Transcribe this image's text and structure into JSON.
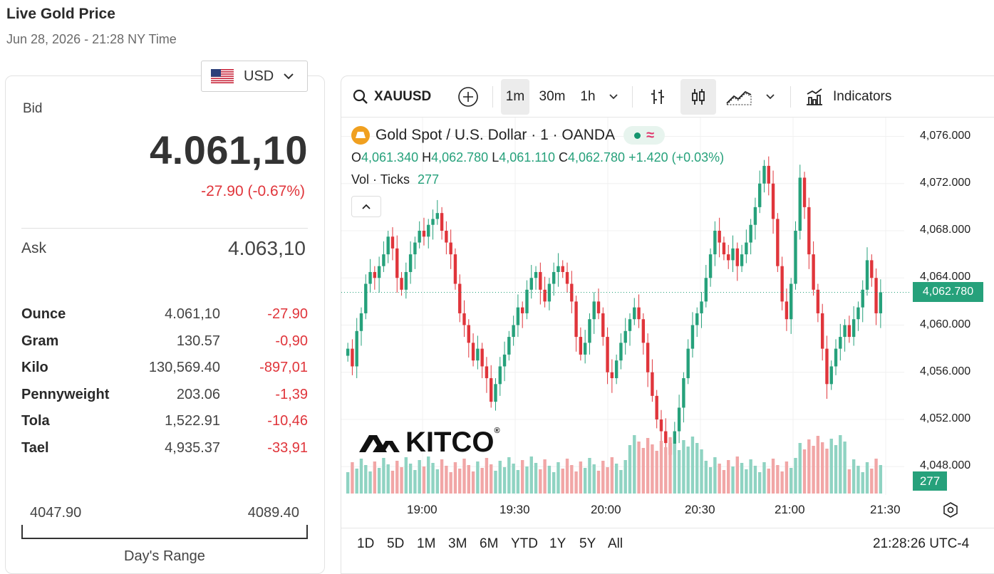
{
  "page": {
    "title": "Live Gold Price",
    "subtitle": "Jun 28, 2026 - 21:28 NY Time"
  },
  "currency": {
    "selected": "USD",
    "flag_icon": "us-flag-icon"
  },
  "quote": {
    "bid_label": "Bid",
    "bid_value": "4.061,10",
    "bid_change": "-27.90 (-0.67%)",
    "ask_label": "Ask",
    "ask_value": "4.063,10"
  },
  "units": [
    {
      "name": "Ounce",
      "price": "4.061,10",
      "change": "-27.90"
    },
    {
      "name": "Gram",
      "price": "130.57",
      "change": "-0,90"
    },
    {
      "name": "Kilo",
      "price": "130,569.40",
      "change": "-897,01"
    },
    {
      "name": "Pennyweight",
      "price": "203.06",
      "change": "-1,39"
    },
    {
      "name": "Tola",
      "price": "1,522.91",
      "change": "-10,46"
    },
    {
      "name": "Tael",
      "price": "4,935.37",
      "change": "-33,91"
    }
  ],
  "day_range": {
    "low": "4047.90",
    "high": "4089.40",
    "caption": "Day's Range"
  },
  "toolbar": {
    "symbol": "XAUUSD",
    "intervals": [
      "1m",
      "30m",
      "1h"
    ],
    "active_interval": "1m",
    "indicators_label": "Indicators"
  },
  "legend": {
    "title": "Gold Spot / U.S. Dollar · 1 · OANDA",
    "o_label": "O",
    "o": "4,061.340",
    "h_label": "H",
    "h": "4,062.780",
    "l_label": "L",
    "l": "4,061.110",
    "c_label": "C",
    "c": "4,062.780",
    "change": "+1.420 (+0.03%)",
    "vol_label": "Vol · Ticks",
    "vol": "277"
  },
  "brand_logo": "KITCO",
  "colors": {
    "up": "#26a17b",
    "down": "#e0353b",
    "up_vol": "#8fd3c2",
    "down_vol": "#f1a6a6"
  },
  "chart_data": {
    "type": "candlestick",
    "x_ticks": [
      "19:00",
      "19:30",
      "20:00",
      "20:30",
      "21:00",
      "21:30"
    ],
    "y_ticks": [
      "4,076.000",
      "4,072.000",
      "4,068.000",
      "4,064.000",
      "4,060.000",
      "4,056.000",
      "4,052.000",
      "4,048.000"
    ],
    "ylim": [
      4045.6,
      4077.6
    ],
    "last_price": "4,062.780",
    "last_volume": "277",
    "closes": [
      4058.0,
      4056.5,
      4059.5,
      4061.0,
      4063.5,
      4064.5,
      4064.0,
      4065.0,
      4066.0,
      4067.5,
      4066.5,
      4064.0,
      4063.0,
      4064.5,
      4066.0,
      4067.0,
      4068.0,
      4067.5,
      4068.5,
      4069.0,
      4069.5,
      4068.0,
      4067.0,
      4066.0,
      4063.5,
      4061.0,
      4060.0,
      4058.5,
      4057.0,
      4058.0,
      4056.5,
      4055.5,
      4053.5,
      4055.0,
      4056.5,
      4057.5,
      4059.0,
      4060.0,
      4061.5,
      4061.0,
      4063.0,
      4064.0,
      4064.5,
      4063.0,
      4062.0,
      4063.5,
      4064.5,
      4065.0,
      4064.5,
      4063.5,
      4062.0,
      4059.0,
      4057.5,
      4058.5,
      4060.5,
      4062.0,
      4061.0,
      4059.0,
      4056.0,
      4055.5,
      4057.0,
      4058.5,
      4059.5,
      4060.5,
      4061.5,
      4060.5,
      4058.5,
      4056.0,
      4054.0,
      4052.0,
      4051.0,
      4050.0,
      4049.0,
      4051.0,
      4053.0,
      4055.5,
      4058.0,
      4060.0,
      4061.0,
      4062.0,
      4064.0,
      4066.0,
      4068.0,
      4067.0,
      4066.0,
      4065.5,
      4066.5,
      4065.0,
      4066.0,
      4067.0,
      4068.5,
      4070.0,
      4072.0,
      4073.5,
      4072.0,
      4069.0,
      4065.0,
      4062.0,
      4060.5,
      4063.5,
      4068.0,
      4072.5,
      4070.0,
      4066.0,
      4063.0,
      4061.0,
      4058.0,
      4055.0,
      4056.5,
      4058.0,
      4059.0,
      4060.0,
      4059.0,
      4060.5,
      4061.5,
      4063.0,
      4065.5,
      4064.0,
      4061.0,
      4062.78
    ]
  }
}
